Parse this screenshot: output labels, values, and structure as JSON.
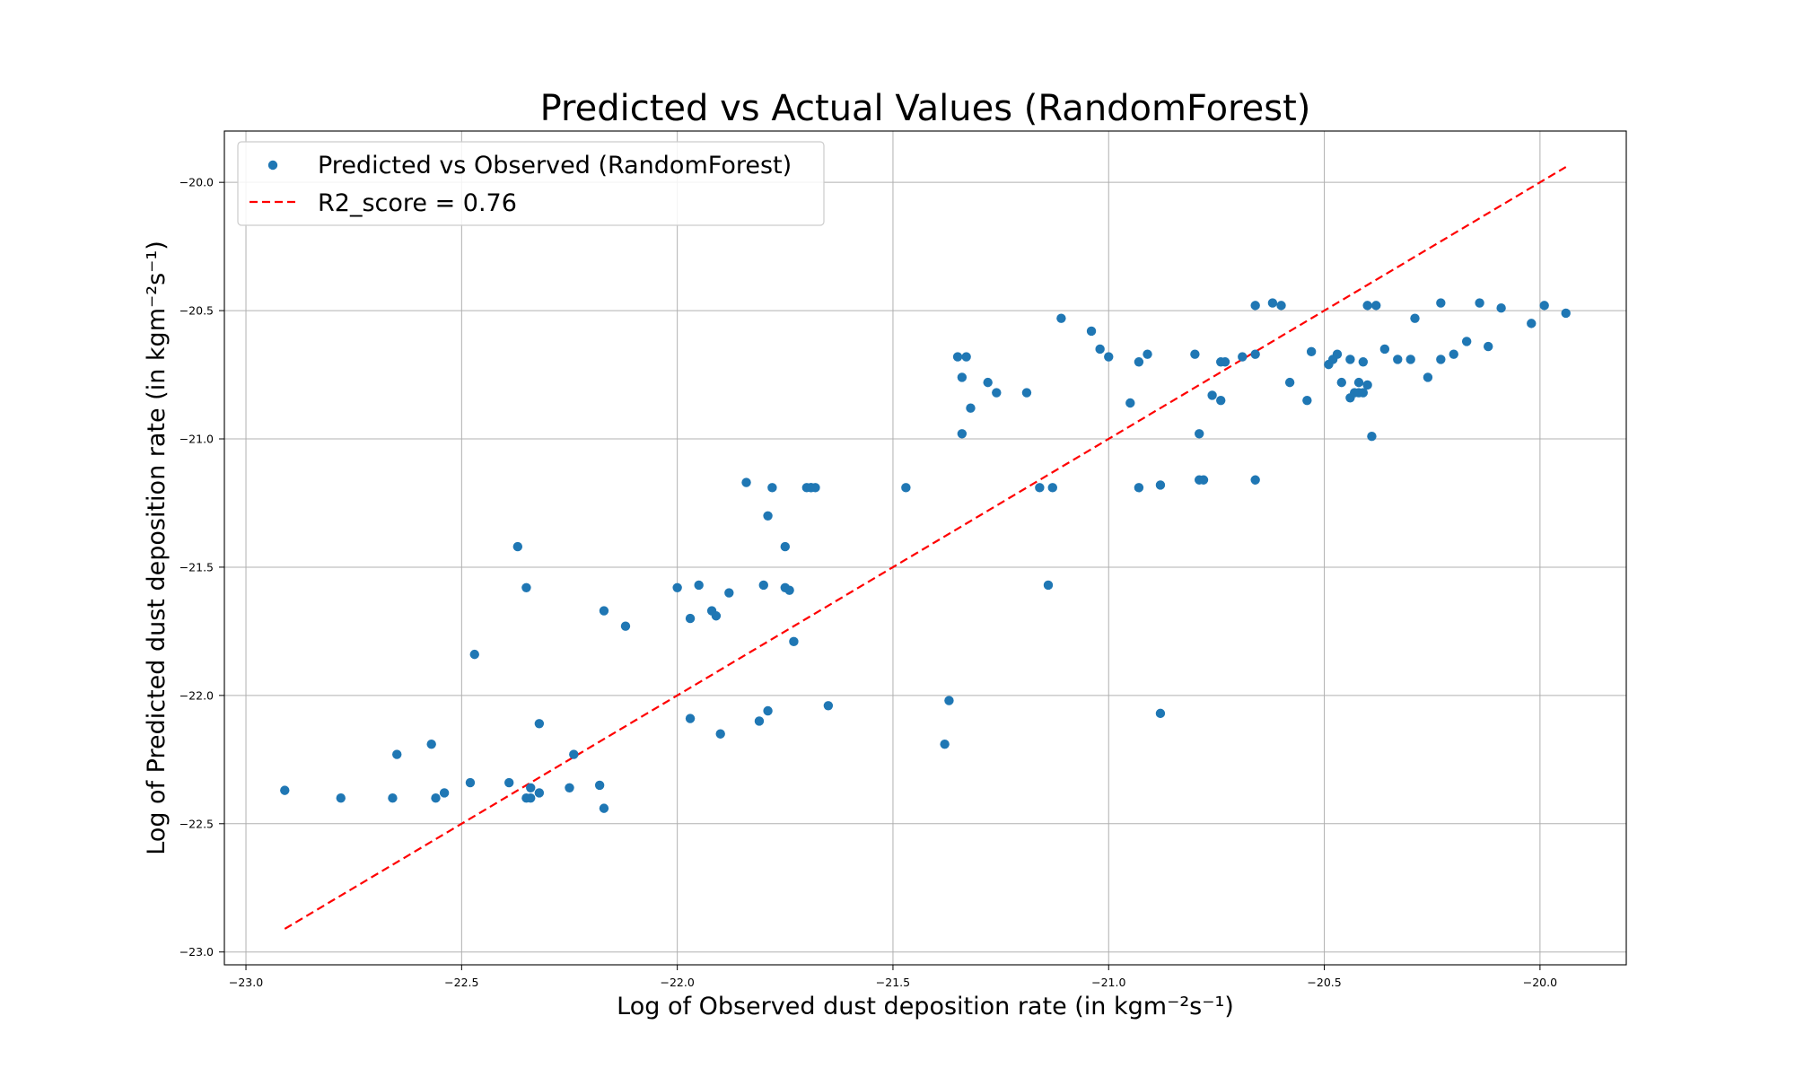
{
  "chart_data": {
    "type": "scatter",
    "title": "Predicted vs Actual Values (RandomForest)",
    "xlabel": "Log of Observed dust deposition rate (in kgm⁻²s⁻¹)",
    "ylabel": "Log of Predicted dust deposition rate (in kgm⁻²s⁻¹)",
    "xlim": [
      -23.05,
      -19.8
    ],
    "ylim": [
      -23.05,
      -19.8
    ],
    "xticks": [
      -23.0,
      -22.5,
      -22.0,
      -21.5,
      -21.0,
      -20.5,
      -20.0
    ],
    "yticks": [
      -23.0,
      -22.5,
      -22.0,
      -21.5,
      -21.0,
      -20.5,
      -20.0
    ],
    "xtick_labels": [
      "−23.0",
      "−22.5",
      "−22.0",
      "−21.5",
      "−21.0",
      "−20.5",
      "−20.0"
    ],
    "ytick_labels": [
      "−23.0",
      "−22.5",
      "−22.0",
      "−21.5",
      "−21.0",
      "−20.5",
      "−20.0"
    ],
    "grid": true,
    "legend_position": "top-left",
    "colors": {
      "points": "#1f77b4",
      "fit_line": "#ff0000"
    },
    "series": [
      {
        "name": "Predicted vs Observed (RandomForest)",
        "type": "scatter",
        "x": [
          -22.91,
          -22.78,
          -22.66,
          -22.65,
          -22.57,
          -22.56,
          -22.54,
          -22.48,
          -22.47,
          -22.39,
          -22.37,
          -22.35,
          -22.35,
          -22.34,
          -22.34,
          -22.32,
          -22.32,
          -22.25,
          -22.24,
          -22.18,
          -22.17,
          -22.17,
          -22.12,
          -22.0,
          -21.97,
          -21.97,
          -21.95,
          -21.92,
          -21.91,
          -21.9,
          -21.88,
          -21.84,
          -21.81,
          -21.8,
          -21.79,
          -21.79,
          -21.78,
          -21.75,
          -21.75,
          -21.74,
          -21.73,
          -21.7,
          -21.69,
          -21.69,
          -21.68,
          -21.65,
          -21.47,
          -21.38,
          -21.37,
          -21.35,
          -21.34,
          -21.34,
          -21.33,
          -21.32,
          -21.28,
          -21.26,
          -21.19,
          -21.16,
          -21.14,
          -21.13,
          -21.11,
          -21.04,
          -21.02,
          -21.0,
          -20.95,
          -20.93,
          -20.93,
          -20.91,
          -20.88,
          -20.88,
          -20.8,
          -20.79,
          -20.79,
          -20.78,
          -20.76,
          -20.74,
          -20.74,
          -20.73,
          -20.69,
          -20.66,
          -20.66,
          -20.66,
          -20.62,
          -20.6,
          -20.58,
          -20.54,
          -20.53,
          -20.49,
          -20.48,
          -20.47,
          -20.46,
          -20.44,
          -20.44,
          -20.43,
          -20.42,
          -20.42,
          -20.41,
          -20.41,
          -20.4,
          -20.4,
          -20.39,
          -20.38,
          -20.36,
          -20.33,
          -20.3,
          -20.29,
          -20.26,
          -20.23,
          -20.23,
          -20.2,
          -20.17,
          -20.14,
          -20.12,
          -20.09,
          -20.02,
          -19.99,
          -19.94
        ],
        "y": [
          -22.37,
          -22.4,
          -22.4,
          -22.23,
          -22.19,
          -22.4,
          -22.38,
          -22.34,
          -21.84,
          -22.34,
          -21.42,
          -22.4,
          -21.58,
          -22.36,
          -22.4,
          -22.11,
          -22.38,
          -22.36,
          -22.23,
          -22.35,
          -21.67,
          -22.44,
          -21.73,
          -21.58,
          -21.7,
          -22.09,
          -21.57,
          -21.67,
          -21.69,
          -22.15,
          -21.6,
          -21.17,
          -22.1,
          -21.57,
          -21.3,
          -22.06,
          -21.19,
          -21.58,
          -21.42,
          -21.59,
          -21.79,
          -21.19,
          -21.19,
          -21.19,
          -21.19,
          -22.04,
          -21.19,
          -22.19,
          -22.02,
          -20.68,
          -20.76,
          -20.98,
          -20.68,
          -20.88,
          -20.78,
          -20.82,
          -20.82,
          -21.19,
          -21.57,
          -21.19,
          -20.53,
          -20.58,
          -20.65,
          -20.68,
          -20.86,
          -20.7,
          -21.19,
          -20.67,
          -21.18,
          -22.07,
          -20.67,
          -20.98,
          -21.16,
          -21.16,
          -20.83,
          -20.7,
          -20.85,
          -20.7,
          -20.68,
          -20.48,
          -20.67,
          -21.16,
          -20.47,
          -20.48,
          -20.78,
          -20.85,
          -20.66,
          -20.71,
          -20.69,
          -20.67,
          -20.78,
          -20.69,
          -20.84,
          -20.82,
          -20.78,
          -20.82,
          -20.7,
          -20.82,
          -20.48,
          -20.79,
          -20.99,
          -20.48,
          -20.65,
          -20.69,
          -20.69,
          -20.53,
          -20.76,
          -20.69,
          -20.47,
          -20.67,
          -20.62,
          -20.47,
          -20.64,
          -20.49,
          -20.55,
          -20.48,
          -20.51
        ]
      },
      {
        "name": "R2_score = 0.76",
        "type": "line",
        "style": "dashed",
        "x": [
          -22.91,
          -19.94
        ],
        "y": [
          -22.91,
          -19.94
        ]
      }
    ]
  }
}
